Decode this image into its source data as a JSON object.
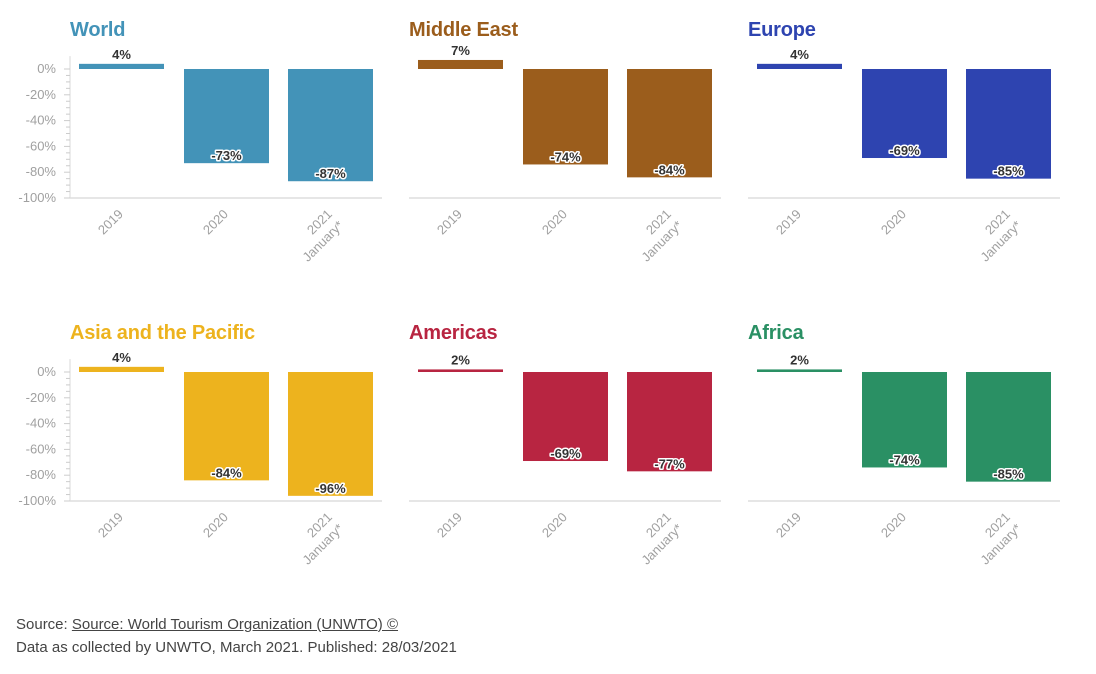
{
  "chart_data": [
    {
      "type": "bar",
      "title": "World",
      "color": "#4393b8",
      "categories": [
        "2019",
        "2020",
        "2021 January*"
      ],
      "values": [
        4,
        -73,
        -87
      ],
      "value_labels": [
        "4%",
        "-73%",
        "-87%"
      ],
      "ylim": [
        -100,
        10
      ],
      "yticks": [
        "0%",
        "-20%",
        "-40%",
        "-60%",
        "-80%",
        "-100%"
      ],
      "grid": false,
      "show_y_axis": true
    },
    {
      "type": "bar",
      "title": "Middle East",
      "color": "#9b5d1c",
      "categories": [
        "2019",
        "2020",
        "2021 January*"
      ],
      "values": [
        7,
        -74,
        -84
      ],
      "value_labels": [
        "7%",
        "-74%",
        "-84%"
      ],
      "ylim": [
        -100,
        10
      ],
      "grid": false,
      "show_y_axis": false
    },
    {
      "type": "bar",
      "title": "Europe",
      "color": "#2e44b0",
      "categories": [
        "2019",
        "2020",
        "2021 January*"
      ],
      "values": [
        4,
        -69,
        -85
      ],
      "value_labels": [
        "4%",
        "-69%",
        "-85%"
      ],
      "ylim": [
        -100,
        10
      ],
      "grid": false,
      "show_y_axis": false
    },
    {
      "type": "bar",
      "title": "Asia and the Pacific",
      "color": "#edb31e",
      "categories": [
        "2019",
        "2020",
        "2021 January*"
      ],
      "values": [
        4,
        -84,
        -96
      ],
      "value_labels": [
        "4%",
        "-84%",
        "-96%"
      ],
      "ylim": [
        -100,
        10
      ],
      "yticks": [
        "0%",
        "-20%",
        "-40%",
        "-60%",
        "-80%",
        "-100%"
      ],
      "grid": false,
      "show_y_axis": true
    },
    {
      "type": "bar",
      "title": "Americas",
      "color": "#b82541",
      "categories": [
        "2019",
        "2020",
        "2021 January*"
      ],
      "values": [
        2,
        -69,
        -77
      ],
      "value_labels": [
        "2%",
        "-69%",
        "-77%"
      ],
      "ylim": [
        -100,
        10
      ],
      "grid": false,
      "show_y_axis": false
    },
    {
      "type": "bar",
      "title": "Africa",
      "color": "#2a9064",
      "categories": [
        "2019",
        "2020",
        "2021 January*"
      ],
      "values": [
        2,
        -74,
        -85
      ],
      "value_labels": [
        "2%",
        "-74%",
        "-85%"
      ],
      "ylim": [
        -100,
        10
      ],
      "grid": false,
      "show_y_axis": false
    }
  ],
  "footer": {
    "source_prefix": "Source: ",
    "source_link": "Source: World Tourism Organization (UNWTO) ©",
    "note": "Data as collected by UNWTO, March 2021. Published: 28/03/2021"
  }
}
